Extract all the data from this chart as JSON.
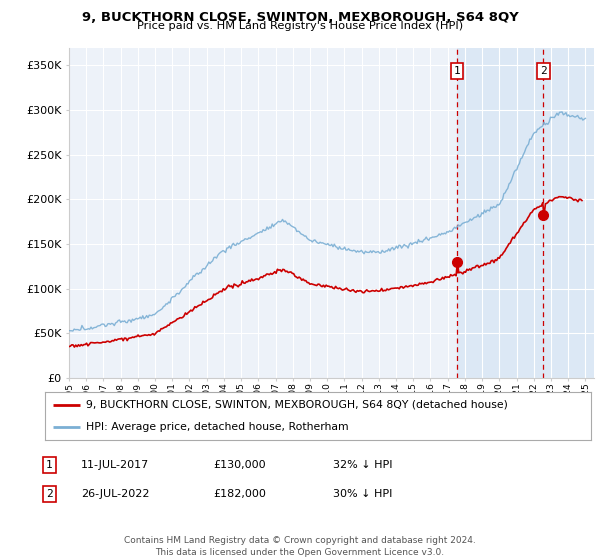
{
  "title": "9, BUCKTHORN CLOSE, SWINTON, MEXBOROUGH, S64 8QY",
  "subtitle": "Price paid vs. HM Land Registry's House Price Index (HPI)",
  "legend_line1": "9, BUCKTHORN CLOSE, SWINTON, MEXBOROUGH, S64 8QY (detached house)",
  "legend_line2": "HPI: Average price, detached house, Rotherham",
  "annotation1_label": "1",
  "annotation1_date": "11-JUL-2017",
  "annotation1_price": "£130,000",
  "annotation1_hpi": "32% ↓ HPI",
  "annotation2_label": "2",
  "annotation2_date": "26-JUL-2022",
  "annotation2_price": "£182,000",
  "annotation2_hpi": "30% ↓ HPI",
  "footer": "Contains HM Land Registry data © Crown copyright and database right 2024.\nThis data is licensed under the Open Government Licence v3.0.",
  "sale_color": "#cc0000",
  "hpi_color": "#7bafd4",
  "highlight_color": "#dce8f5",
  "background_color": "#ffffff",
  "plot_bg_color": "#edf2f9",
  "grid_color": "#ffffff",
  "ylim": [
    0,
    370000
  ],
  "yticks": [
    0,
    50000,
    100000,
    150000,
    200000,
    250000,
    300000,
    350000
  ],
  "ytick_labels": [
    "£0",
    "£50K",
    "£100K",
    "£150K",
    "£200K",
    "£250K",
    "£300K",
    "£350K"
  ],
  "sale1_year": 2017.53,
  "sale1_price": 130000,
  "sale2_year": 2022.56,
  "sale2_price": 182000,
  "xmin": 1995,
  "xmax": 2025.5
}
